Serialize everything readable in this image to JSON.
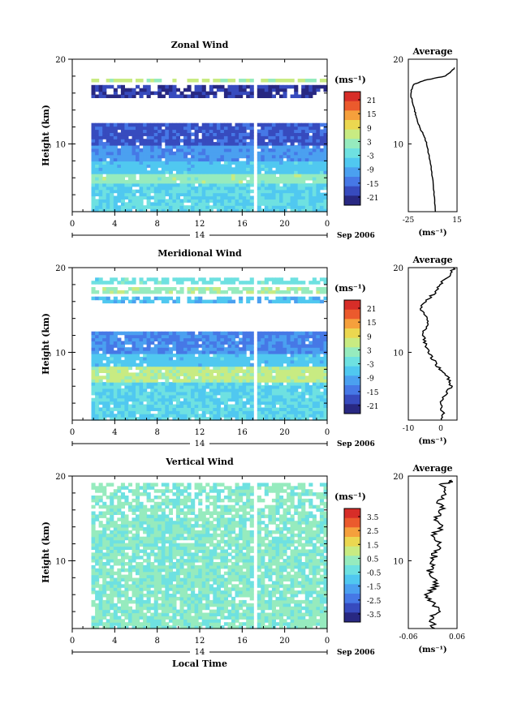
{
  "x_axis": {
    "ticks": [
      "0",
      "4",
      "8",
      "12",
      "16",
      "20",
      "0"
    ],
    "day_label": "14",
    "date_label": "Sep 2006",
    "xlabel": "Local Time"
  },
  "average_title": "Average",
  "unit_label": "(ms⁻¹)",
  "panels": [
    {
      "title": "Zonal Wind",
      "ylabel": "Height (km)",
      "yticks": [
        "20",
        "10"
      ],
      "colorbar_ticks": [
        "21",
        "15",
        "9",
        "3",
        "-3",
        "-9",
        "-15",
        "-21"
      ],
      "avg_xticks": [
        "-25",
        "15"
      ],
      "avg_ylabels": [
        "20",
        "10"
      ],
      "avg_xlabel": "(ms⁻¹)"
    },
    {
      "title": "Meridional Wind",
      "ylabel": "Height (km)",
      "yticks": [
        "20",
        "10"
      ],
      "colorbar_ticks": [
        "21",
        "15",
        "9",
        "3",
        "-3",
        "-9",
        "-15",
        "-21"
      ],
      "avg_xticks": [
        "-10",
        "0"
      ],
      "avg_ylabels": [
        "20",
        "10"
      ],
      "avg_xlabel": "(ms⁻¹)"
    },
    {
      "title": "Vertical Wind",
      "ylabel": "Height (km)",
      "yticks": [
        "20",
        "10"
      ],
      "colorbar_ticks": [
        "3.5",
        "2.5",
        "1.5",
        "0.5",
        "-0.5",
        "-1.5",
        "-2.5",
        "-3.5"
      ],
      "avg_xticks": [
        "-0.06",
        "0.06"
      ],
      "avg_ylabels": [
        "20",
        "10"
      ],
      "avg_xlabel": "(ms⁻¹)"
    }
  ],
  "chart_data": [
    {
      "type": "heatmap",
      "title": "Zonal Wind",
      "x_range_hours": [
        0,
        24
      ],
      "y_range_km": [
        2,
        20
      ],
      "color_range": [
        -24,
        24
      ],
      "units": "ms-1",
      "data_start_hour": 1.8,
      "gap_hour": 17.2,
      "layers": [
        {
          "z": [
            17.2,
            17.6
          ],
          "v": 5
        },
        {
          "z": [
            15.5,
            17.0
          ],
          "v": -20
        },
        {
          "z": [
            10.0,
            12.5
          ],
          "v": -17
        },
        {
          "z": [
            8.0,
            10.0
          ],
          "v": -11
        },
        {
          "z": [
            6.5,
            8.0
          ],
          "v": -6
        },
        {
          "z": [
            5.5,
            6.5
          ],
          "v": 2
        },
        {
          "z": [
            2.0,
            5.5
          ],
          "v": -4
        }
      ],
      "profile": {
        "type": "line",
        "title": "Average",
        "xlabel": "(ms-1)",
        "xlim": [
          -25,
          15
        ],
        "ylim": [
          2,
          20
        ],
        "z": [
          2,
          4,
          6,
          8,
          10,
          11,
          12,
          13,
          14,
          15,
          16,
          17,
          17.5,
          18,
          18.5,
          19
        ],
        "v": [
          -3,
          -4,
          -5,
          -7,
          -10,
          -12,
          -16,
          -18,
          -20,
          -22,
          -23,
          -21,
          -12,
          5,
          10,
          13
        ]
      }
    },
    {
      "type": "heatmap",
      "title": "Meridional Wind",
      "x_range_hours": [
        0,
        24
      ],
      "y_range_km": [
        2,
        20
      ],
      "color_range": [
        -24,
        24
      ],
      "units": "ms-1",
      "data_start_hour": 1.8,
      "gap_hour": 17.2,
      "layers": [
        {
          "z": [
            18.0,
            19.0
          ],
          "v": -2
        },
        {
          "z": [
            17.0,
            17.6
          ],
          "v": 3
        },
        {
          "z": [
            15.8,
            16.6
          ],
          "v": -7
        },
        {
          "z": [
            10.0,
            12.5
          ],
          "v": -12
        },
        {
          "z": [
            8.5,
            10.0
          ],
          "v": -6
        },
        {
          "z": [
            6.5,
            8.5
          ],
          "v": 5
        },
        {
          "z": [
            2.0,
            6.5
          ],
          "v": -4
        }
      ],
      "profile": {
        "type": "line",
        "title": "Average",
        "xlabel": "(ms-1)",
        "xlim": [
          -12,
          5
        ],
        "ylim": [
          2,
          20
        ],
        "z": [
          2,
          3,
          4,
          5,
          6,
          7,
          8,
          9,
          10,
          11,
          12,
          13,
          14,
          15,
          16,
          17,
          18,
          19,
          20
        ],
        "v": [
          0,
          0,
          -1,
          1,
          3,
          2,
          -1,
          -3,
          -5,
          -6,
          -7,
          -6,
          -5,
          -8,
          -6,
          -3,
          -1,
          2,
          4
        ]
      }
    },
    {
      "type": "heatmap",
      "title": "Vertical Wind",
      "x_range_hours": [
        0,
        24
      ],
      "y_range_km": [
        2,
        20
      ],
      "color_range": [
        -4,
        4
      ],
      "units": "ms-1",
      "data_start_hour": 1.8,
      "gap_hour": 17.2,
      "layers": [
        {
          "z": [
            2.0,
            20.0
          ],
          "v": 0.1
        }
      ],
      "profile": {
        "type": "line",
        "title": "Average",
        "xlabel": "(ms-1)",
        "xlim": [
          -0.08,
          0.08
        ],
        "ylim": [
          2,
          20
        ],
        "z": [
          2,
          3,
          4,
          5,
          6,
          7,
          8,
          9,
          10,
          11,
          12,
          13,
          14,
          15,
          16,
          17,
          18,
          19,
          19.5
        ],
        "v": [
          0.01,
          -0.01,
          0.02,
          0.0,
          -0.02,
          0.01,
          0.0,
          -0.01,
          0.0,
          0.01,
          0.02,
          0.0,
          0.03,
          0.01,
          0.03,
          0.02,
          0.05,
          0.03,
          0.07
        ]
      }
    }
  ]
}
